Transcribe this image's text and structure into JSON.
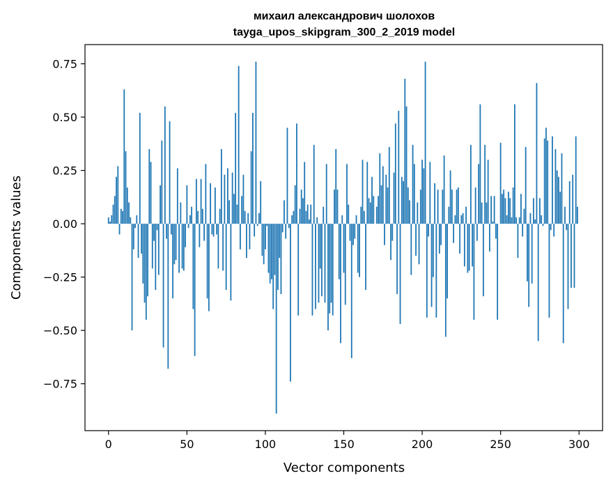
{
  "chart_data": {
    "type": "bar",
    "title": "михаил александрович шолохов",
    "subtitle": "tayga_upos_skipgram_300_2_2019 model",
    "xlabel": "Vector components",
    "ylabel": "Components values",
    "xlim": [
      -15,
      315
    ],
    "ylim": [
      -0.97,
      0.84
    ],
    "xticks": [
      0,
      50,
      100,
      150,
      200,
      250,
      300
    ],
    "xtick_labels": [
      "0",
      "50",
      "100",
      "150",
      "200",
      "250",
      "300"
    ],
    "yticks": [
      -0.75,
      -0.5,
      -0.25,
      0.0,
      0.25,
      0.5,
      0.75
    ],
    "ytick_labels": [
      "−0.75",
      "−0.50",
      "−0.25",
      "0.00",
      "0.25",
      "0.50",
      "0.75"
    ],
    "grid": false,
    "bar_color": "#1f77b4",
    "x": [
      0,
      1,
      2,
      3,
      4,
      5,
      6,
      7,
      8,
      9,
      10,
      11,
      12,
      13,
      14,
      15,
      16,
      17,
      18,
      19,
      20,
      21,
      22,
      23,
      24,
      25,
      26,
      27,
      28,
      29,
      30,
      31,
      32,
      33,
      34,
      35,
      36,
      37,
      38,
      39,
      40,
      41,
      42,
      43,
      44,
      45,
      46,
      47,
      48,
      49,
      50,
      51,
      52,
      53,
      54,
      55,
      56,
      57,
      58,
      59,
      60,
      61,
      62,
      63,
      64,
      65,
      66,
      67,
      68,
      69,
      70,
      71,
      72,
      73,
      74,
      75,
      76,
      77,
      78,
      79,
      80,
      81,
      82,
      83,
      84,
      85,
      86,
      87,
      88,
      89,
      90,
      91,
      92,
      93,
      94,
      95,
      96,
      97,
      98,
      99,
      100,
      101,
      102,
      103,
      104,
      105,
      106,
      107,
      108,
      109,
      110,
      111,
      112,
      113,
      114,
      115,
      116,
      117,
      118,
      119,
      120,
      121,
      122,
      123,
      124,
      125,
      126,
      127,
      128,
      129,
      130,
      131,
      132,
      133,
      134,
      135,
      136,
      137,
      138,
      139,
      140,
      141,
      142,
      143,
      144,
      145,
      146,
      147,
      148,
      149,
      150,
      151,
      152,
      153,
      154,
      155,
      156,
      157,
      158,
      159,
      160,
      161,
      162,
      163,
      164,
      165,
      166,
      167,
      168,
      169,
      170,
      171,
      172,
      173,
      174,
      175,
      176,
      177,
      178,
      179,
      180,
      181,
      182,
      183,
      184,
      185,
      186,
      187,
      188,
      189,
      190,
      191,
      192,
      193,
      194,
      195,
      196,
      197,
      198,
      199,
      200,
      201,
      202,
      203,
      204,
      205,
      206,
      207,
      208,
      209,
      210,
      211,
      212,
      213,
      214,
      215,
      216,
      217,
      218,
      219,
      220,
      221,
      222,
      223,
      224,
      225,
      226,
      227,
      228,
      229,
      230,
      231,
      232,
      233,
      234,
      235,
      236,
      237,
      238,
      239,
      240,
      241,
      242,
      243,
      244,
      245,
      246,
      247,
      248,
      249,
      250,
      251,
      252,
      253,
      254,
      255,
      256,
      257,
      258,
      259,
      260,
      261,
      262,
      263,
      264,
      265,
      266,
      267,
      268,
      269,
      270,
      271,
      272,
      273,
      274,
      275,
      276,
      277,
      278,
      279,
      280,
      281,
      282,
      283,
      284,
      285,
      286,
      287,
      288,
      289,
      290,
      291,
      292,
      293,
      294,
      295,
      296,
      297,
      298,
      299
    ],
    "values": [
      0.03,
      0.01,
      0.04,
      0.09,
      0.13,
      0.22,
      0.27,
      -0.05,
      0.07,
      0.06,
      0.63,
      0.34,
      0.17,
      0.1,
      0.03,
      -0.5,
      -0.12,
      -0.02,
      0.04,
      -0.16,
      0.52,
      -0.14,
      -0.28,
      -0.37,
      -0.45,
      -0.34,
      0.35,
      0.29,
      -0.21,
      -0.08,
      -0.31,
      -0.03,
      -0.24,
      0.18,
      0.39,
      -0.58,
      0.55,
      -0.07,
      -0.68,
      0.48,
      -0.05,
      -0.35,
      -0.19,
      -0.17,
      0.26,
      -0.23,
      0.1,
      -0.21,
      -0.22,
      -0.11,
      0.18,
      -0.02,
      0.04,
      0.08,
      -0.4,
      -0.62,
      0.21,
      0.06,
      -0.11,
      0.21,
      0.07,
      -0.08,
      0.28,
      -0.35,
      -0.41,
      0.19,
      -0.05,
      -0.06,
      0.17,
      -0.05,
      -0.21,
      0.07,
      0.35,
      -0.22,
      0.23,
      -0.31,
      0.26,
      0.11,
      -0.36,
      0.24,
      0.14,
      0.52,
      0.09,
      0.74,
      -0.12,
      0.13,
      0.23,
      0.06,
      -0.16,
      0.05,
      -0.12,
      0.34,
      0.52,
      -0.06,
      0.76,
      -0.01,
      0.05,
      0.2,
      -0.15,
      -0.19,
      -0.12,
      -0.01,
      -0.23,
      -0.28,
      -0.26,
      -0.4,
      -0.24,
      -0.89,
      -0.31,
      -0.16,
      -0.33,
      -0.04,
      0.11,
      -0.07,
      0.45,
      -0.02,
      -0.74,
      0.04,
      0.06,
      0.18,
      0.47,
      -0.43,
      0.07,
      0.16,
      0.12,
      0.29,
      0.06,
      0.09,
      0.02,
      0.09,
      -0.43,
      0.37,
      -0.4,
      0.03,
      -0.37,
      -0.21,
      -0.34,
      0.08,
      -0.37,
      0.28,
      -0.5,
      -0.42,
      -0.37,
      -0.43,
      0.16,
      0.35,
      0.16,
      -0.26,
      -0.56,
      0.04,
      -0.23,
      -0.38,
      0.28,
      0.09,
      -0.08,
      -0.63,
      -0.1,
      -0.07,
      0.04,
      -0.23,
      -0.25,
      0.08,
      0.3,
      0.06,
      -0.31,
      0.29,
      0.12,
      0.1,
      0.22,
      0.13,
      0.0,
      0.08,
      0.13,
      0.33,
      0.18,
      0.27,
      -0.1,
      0.23,
      0.17,
      0.36,
      -0.17,
      -0.08,
      0.24,
      0.47,
      -0.33,
      0.53,
      -0.47,
      0.22,
      0.2,
      0.68,
      0.55,
      0.17,
      0.11,
      -0.24,
      0.37,
      0.28,
      -0.15,
      0.1,
      -0.19,
      0.16,
      0.3,
      0.26,
      0.76,
      -0.44,
      -0.06,
      0.29,
      -0.39,
      -0.25,
      0.19,
      -0.44,
      0.16,
      -0.14,
      -0.1,
      0.16,
      0.32,
      -0.53,
      -0.35,
      0.08,
      0.25,
      0.16,
      -0.09,
      0.04,
      0.16,
      0.17,
      -0.14,
      0.04,
      0.05,
      -0.2,
      0.08,
      -0.23,
      -0.22,
      0.37,
      -0.2,
      -0.45,
      0.17,
      -0.08,
      0.28,
      0.56,
      0.1,
      -0.34,
      0.37,
      0.1,
      0.3,
      -0.13,
      0.13,
      0.01,
      0.13,
      -0.07,
      -0.45,
      0.0,
      0.38,
      0.14,
      0.16,
      0.12,
      0.04,
      0.15,
      0.12,
      0.03,
      0.17,
      0.56,
      0.03,
      -0.16,
      0.03,
      0.14,
      -0.06,
      0.07,
      0.36,
      -0.27,
      -0.39,
      0.05,
      -0.28,
      0.12,
      0.02,
      0.66,
      -0.55,
      0.12,
      0.04,
      -0.01,
      0.4,
      0.45,
      0.39,
      -0.44,
      -0.03,
      0.41,
      -0.06,
      0.35,
      0.25,
      0.22,
      0.15,
      0.33,
      -0.56,
      0.08,
      -0.03,
      -0.4,
      0.2,
      -0.3,
      0.23,
      -0.3,
      0.41,
      0.08
    ]
  }
}
